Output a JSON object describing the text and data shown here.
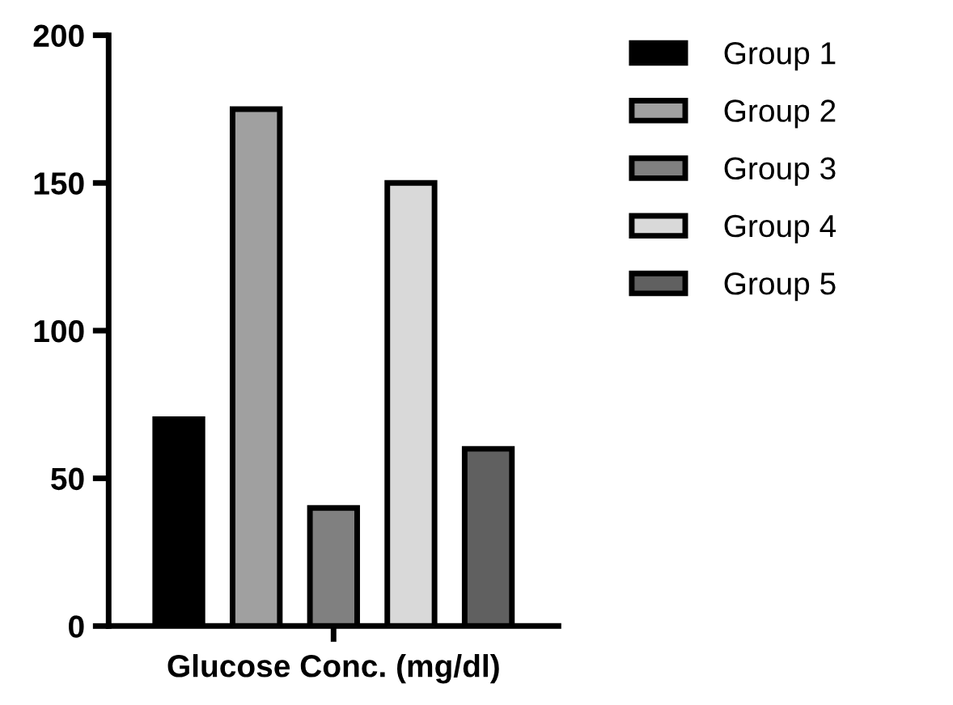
{
  "chart_data": {
    "type": "bar",
    "xlabel": "Glucose Conc. (mg/dl)",
    "categories": [
      null
    ],
    "series": [
      {
        "name": "Group 1",
        "color": "#000000",
        "values": [
          70
        ]
      },
      {
        "name": "Group 2",
        "color": "#a0a0a0",
        "values": [
          175
        ]
      },
      {
        "name": "Group 3",
        "color": "#808080",
        "values": [
          40
        ]
      },
      {
        "name": "Group 4",
        "color": "#d9d9d9",
        "values": [
          150
        ]
      },
      {
        "name": "Group 5",
        "color": "#606060",
        "values": [
          60
        ]
      }
    ],
    "ylim": [
      0,
      200
    ],
    "yticks": [
      0,
      50,
      100,
      150,
      200
    ],
    "grid": false,
    "legend": "right"
  }
}
